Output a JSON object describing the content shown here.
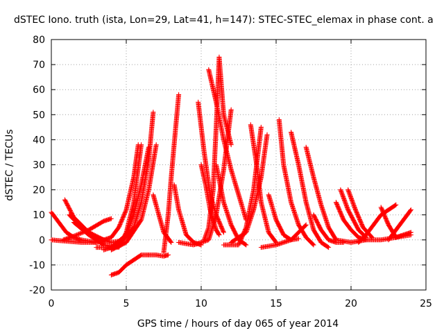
{
  "chart_data": {
    "type": "scatter",
    "title": "dSTEC Iono. truth (ista, Lon=29, Lat=41, h=147): STEC-STEC_elemax in phase cont. a",
    "xlabel": "GPS time / hours of day 065 of year 2014",
    "ylabel": "dSTEC  / TECUs",
    "xlim": [
      0,
      25
    ],
    "ylim": [
      -20,
      80
    ],
    "xticks": [
      0,
      5,
      10,
      15,
      20,
      25
    ],
    "yticks": [
      -20,
      -10,
      0,
      10,
      20,
      30,
      40,
      50,
      60,
      70,
      80
    ],
    "grid": true,
    "marker": "+",
    "color": "#ff0000",
    "series": [
      {
        "x": [
          0.0,
          0.5,
          1.0,
          1.5,
          2.0,
          2.5,
          3.0
        ],
        "y": [
          11,
          7,
          3,
          1,
          0,
          -0.5,
          -1
        ]
      },
      {
        "x": [
          0.0,
          1.0,
          2.0,
          3.0,
          3.6
        ],
        "y": [
          0,
          -0.5,
          -1,
          -1,
          -0.5
        ]
      },
      {
        "x": [
          0.8,
          1.5,
          2.5,
          3.5,
          4.0
        ],
        "y": [
          0,
          1.5,
          4,
          7.5,
          8.5
        ]
      },
      {
        "x": [
          0.9,
          1.5,
          2.5,
          3.5,
          4.0,
          4.5,
          5.0,
          5.5,
          5.8
        ],
        "y": [
          16,
          9,
          3,
          0,
          1,
          5,
          12,
          25,
          38
        ]
      },
      {
        "x": [
          1.2,
          2.0,
          3.0,
          4.0,
          4.5
        ],
        "y": [
          10,
          5,
          1,
          -1,
          -0.5
        ]
      },
      {
        "x": [
          1.5,
          2.5,
          3.5,
          4.5,
          5.0,
          5.5,
          6.0
        ],
        "y": [
          7,
          2,
          -2,
          -3,
          3,
          15,
          38
        ]
      },
      {
        "x": [
          3.0,
          4.0,
          5.0,
          5.5,
          6.0,
          6.5
        ],
        "y": [
          -3,
          -3,
          2,
          10,
          22,
          37
        ]
      },
      {
        "x": [
          3.5,
          4.5,
          5.5,
          6.0,
          6.5,
          6.8
        ],
        "y": [
          -4,
          -2,
          5,
          15,
          32,
          51
        ]
      },
      {
        "x": [
          4.0,
          5.0,
          6.0,
          6.5,
          7.0
        ],
        "y": [
          -4,
          -1,
          8,
          20,
          38
        ]
      },
      {
        "x": [
          4.0,
          4.5,
          5.0,
          5.5,
          6.0,
          6.5
        ],
        "y": [
          -14,
          -13,
          -10,
          -8,
          -6,
          -6
        ]
      },
      {
        "x": [
          6.5,
          7.0,
          7.5,
          7.8
        ],
        "y": [
          -6,
          -6,
          -6.5,
          -6
        ]
      },
      {
        "x": [
          6.8,
          7.5,
          8.0
        ],
        "y": [
          18,
          3,
          -1
        ]
      },
      {
        "x": [
          7.5,
          7.8,
          8.0,
          8.3,
          8.5
        ],
        "y": [
          -5,
          10,
          25,
          45,
          58
        ]
      },
      {
        "x": [
          8.2,
          8.5,
          9.0,
          9.5,
          10.0
        ],
        "y": [
          22,
          12,
          2,
          -1,
          -2
        ]
      },
      {
        "x": [
          8.5,
          9.5,
          10.5,
          11.0,
          11.5,
          12.0
        ],
        "y": [
          -1,
          -2,
          0,
          10,
          28,
          52
        ]
      },
      {
        "x": [
          9.8,
          10.2,
          10.6,
          11.0,
          11.5
        ],
        "y": [
          55,
          35,
          18,
          10,
          3
        ]
      },
      {
        "x": [
          10.0,
          10.3,
          10.6,
          11.0,
          11.2
        ],
        "y": [
          30,
          22,
          12,
          4,
          2
        ]
      },
      {
        "x": [
          10.2,
          10.5,
          10.8,
          11.0,
          11.2,
          11.5,
          12.0
        ],
        "y": [
          0,
          5,
          20,
          45,
          73,
          50,
          38
        ]
      },
      {
        "x": [
          10.5,
          11.0,
          11.5,
          12.0,
          12.5,
          13.0
        ],
        "y": [
          68,
          55,
          40,
          28,
          18,
          8
        ]
      },
      {
        "x": [
          11.0,
          11.5,
          12.0,
          12.5,
          13.0
        ],
        "y": [
          30,
          15,
          6,
          0,
          -2
        ]
      },
      {
        "x": [
          11.5,
          12.5,
          13.0,
          13.5,
          14.0
        ],
        "y": [
          -2,
          -2,
          5,
          20,
          45
        ]
      },
      {
        "x": [
          12.0,
          13.0,
          13.5,
          14.0,
          14.4
        ],
        "y": [
          -1,
          3,
          12,
          25,
          42
        ]
      },
      {
        "x": [
          13.3,
          13.7,
          14.0,
          14.5,
          15.0
        ],
        "y": [
          46,
          30,
          15,
          3,
          -1
        ]
      },
      {
        "x": [
          14.5,
          15.0,
          15.5,
          16.0,
          16.5
        ],
        "y": [
          18,
          8,
          2,
          0,
          0.5
        ]
      },
      {
        "x": [
          14.0,
          15.0,
          16.0,
          16.5,
          17.0
        ],
        "y": [
          -3,
          -2,
          0,
          3,
          6
        ]
      },
      {
        "x": [
          15.2,
          15.5,
          16.0,
          16.5,
          17.0,
          17.5
        ],
        "y": [
          48,
          30,
          15,
          6,
          1,
          -2
        ]
      },
      {
        "x": [
          16.0,
          16.5,
          17.0,
          17.5,
          18.0,
          18.5
        ],
        "y": [
          43,
          30,
          15,
          4,
          -1,
          -3
        ]
      },
      {
        "x": [
          17.0,
          17.5,
          18.0,
          18.5,
          19.0,
          20.0
        ],
        "y": [
          37,
          25,
          14,
          5,
          0,
          -1
        ]
      },
      {
        "x": [
          17.5,
          18.0,
          18.5,
          19.0,
          19.5
        ],
        "y": [
          10,
          4,
          0,
          -1,
          -1
        ]
      },
      {
        "x": [
          19.0,
          19.5,
          20.0,
          20.5,
          21.0
        ],
        "y": [
          15,
          8,
          4,
          1,
          0
        ]
      },
      {
        "x": [
          19.3,
          19.8,
          20.5,
          21.0
        ],
        "y": [
          20,
          12,
          4,
          1
        ]
      },
      {
        "x": [
          19.8,
          20.3,
          20.8,
          21.4
        ],
        "y": [
          20,
          12,
          5,
          1
        ]
      },
      {
        "x": [
          20.0,
          21.0,
          22.0,
          23.0,
          24.0
        ],
        "y": [
          -1,
          0,
          0,
          1,
          2
        ]
      },
      {
        "x": [
          20.5,
          21.0,
          21.5,
          22.0,
          22.5,
          23.0
        ],
        "y": [
          -1,
          2,
          6,
          10,
          12,
          14
        ]
      },
      {
        "x": [
          22.0,
          22.5,
          23.0
        ],
        "y": [
          13,
          6,
          1
        ]
      },
      {
        "x": [
          22.5,
          23.0,
          23.5,
          24.0
        ],
        "y": [
          0,
          4,
          8,
          12
        ]
      },
      {
        "x": [
          23.0,
          23.5,
          24.0
        ],
        "y": [
          1,
          2,
          3
        ]
      }
    ]
  }
}
